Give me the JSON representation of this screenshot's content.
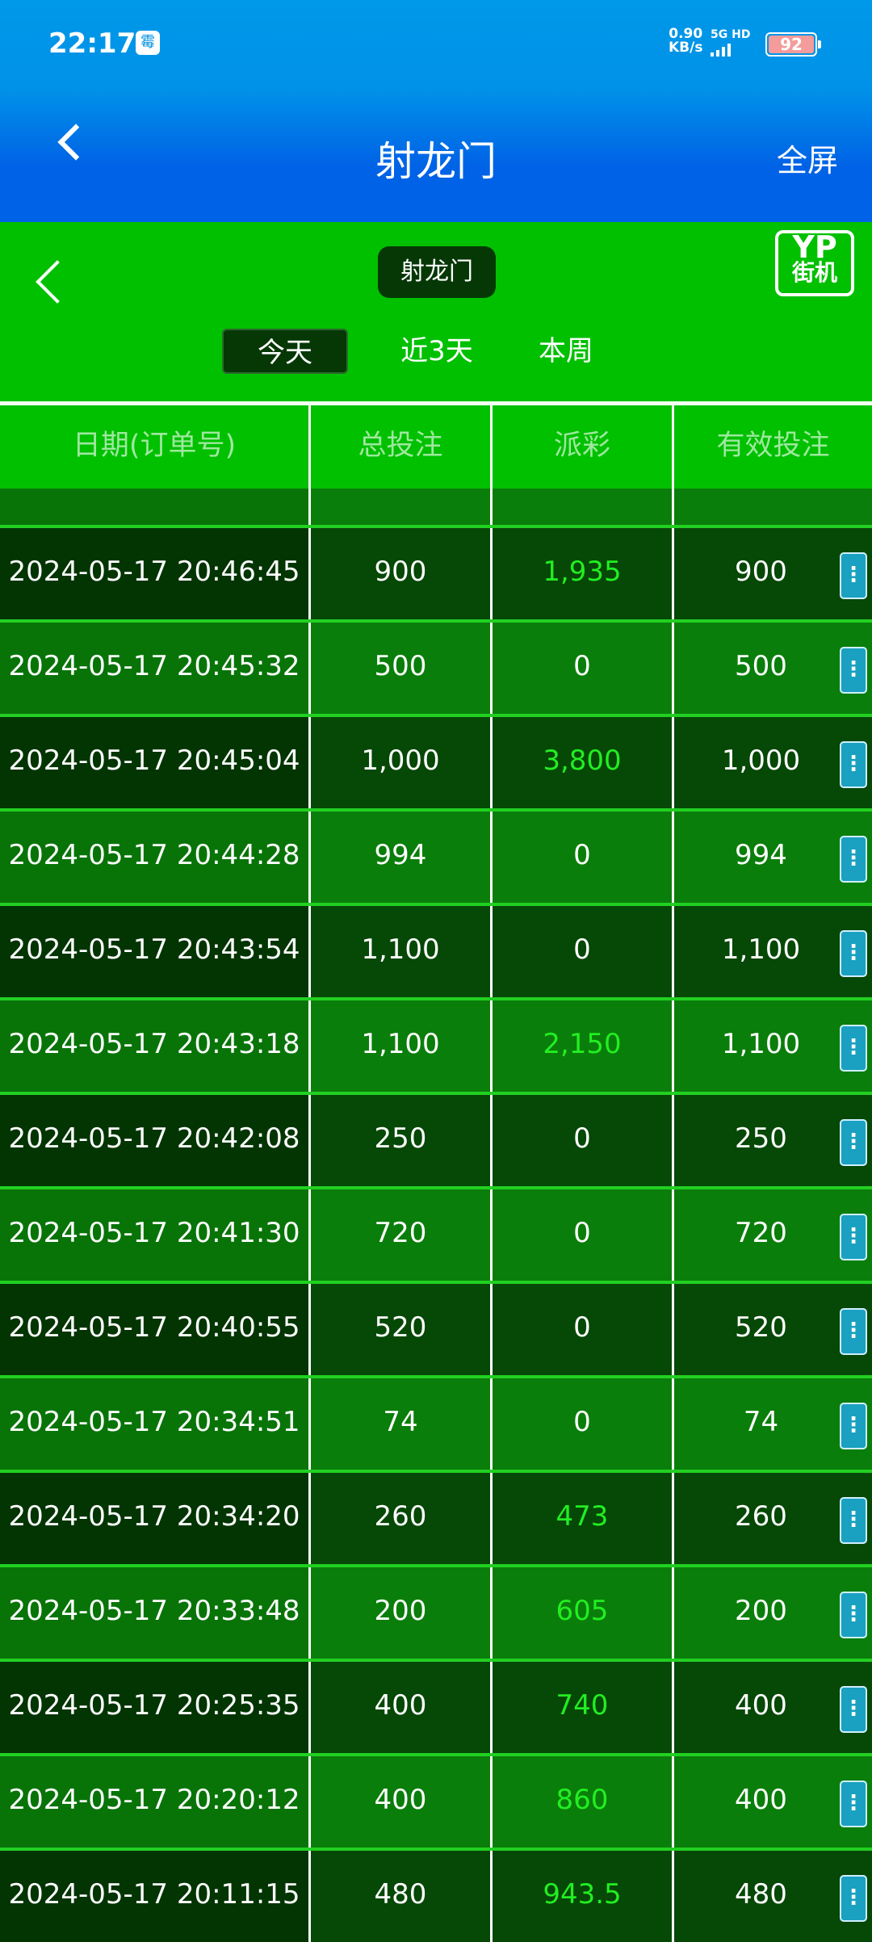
{
  "status_bar": {
    "time": "22:17",
    "badge": "霉",
    "net_speed": "0.90",
    "net_unit": "KB/s",
    "network": "5G HD",
    "battery": "92"
  },
  "header": {
    "title": "射龙门",
    "fullscreen": "全屏"
  },
  "game": {
    "title": "射龙门",
    "logo_top": "YP",
    "logo_bottom": "街机",
    "tabs": [
      {
        "label": "今天",
        "active": true
      },
      {
        "label": "近3天"
      },
      {
        "label": "本周"
      }
    ]
  },
  "table": {
    "columns": [
      "日期(订单号)",
      "总投注",
      "派彩",
      "有效投注"
    ],
    "rows": [
      [
        "2024-05-17 20:46:45",
        "900",
        "1,935",
        "900"
      ],
      [
        "2024-05-17 20:45:32",
        "500",
        "0",
        "500"
      ],
      [
        "2024-05-17 20:45:04",
        "1,000",
        "3,800",
        "1,000"
      ],
      [
        "2024-05-17 20:44:28",
        "994",
        "0",
        "994"
      ],
      [
        "2024-05-17 20:43:54",
        "1,100",
        "0",
        "1,100"
      ],
      [
        "2024-05-17 20:43:18",
        "1,100",
        "2,150",
        "1,100"
      ],
      [
        "2024-05-17 20:42:08",
        "250",
        "0",
        "250"
      ],
      [
        "2024-05-17 20:41:30",
        "720",
        "0",
        "720"
      ],
      [
        "2024-05-17 20:40:55",
        "520",
        "0",
        "520"
      ],
      [
        "2024-05-17 20:34:51",
        "74",
        "0",
        "74"
      ],
      [
        "2024-05-17 20:34:20",
        "260",
        "473",
        "260"
      ],
      [
        "2024-05-17 20:33:48",
        "200",
        "605",
        "200"
      ],
      [
        "2024-05-17 20:25:35",
        "400",
        "740",
        "400"
      ],
      [
        "2024-05-17 20:20:12",
        "400",
        "860",
        "400"
      ],
      [
        "2024-05-17 20:11:15",
        "480",
        "943.5",
        "480"
      ]
    ]
  },
  "colors": {
    "win": "#22ee22",
    "header_blue": "#0062e6",
    "game_green": "#00c000",
    "action": "#1aa0c0"
  }
}
